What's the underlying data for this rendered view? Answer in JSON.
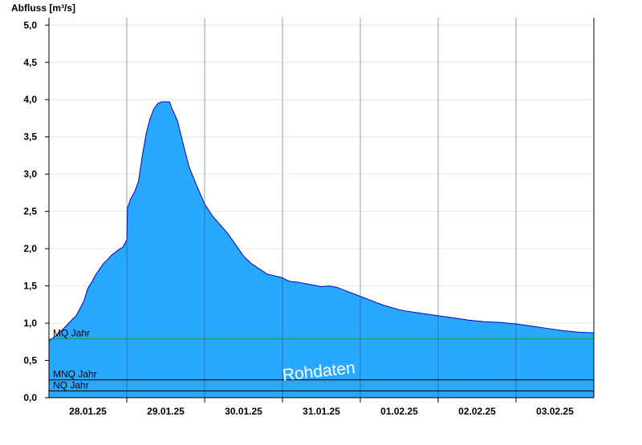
{
  "chart_data": {
    "type": "area",
    "ylabel": "Abfluss [m³/s]",
    "ylim": [
      0,
      5.1
    ],
    "yticks": [
      0,
      0.5,
      1,
      1.5,
      2,
      2.5,
      3,
      3.5,
      4,
      4.5,
      5
    ],
    "ytick_labels": [
      "0,0",
      "0,5",
      "1,0",
      "1,5",
      "2,0",
      "2,5",
      "3,0",
      "3,5",
      "4,0",
      "4,5",
      "5,0"
    ],
    "x_unit": "days since start of chart window",
    "xlim": [
      0,
      7
    ],
    "x_ticks": [
      {
        "x": 0.5,
        "label": "28.01.25"
      },
      {
        "x": 1.5,
        "label": "29.01.25"
      },
      {
        "x": 2.5,
        "label": "30.01.25"
      },
      {
        "x": 3.5,
        "label": "31.01.25"
      },
      {
        "x": 4.5,
        "label": "01.02.25"
      },
      {
        "x": 5.5,
        "label": "02.02.25"
      },
      {
        "x": 6.5,
        "label": "03.02.25"
      }
    ],
    "day_boundaries": [
      1,
      2,
      3,
      4,
      5,
      6
    ],
    "grid": "horizontal",
    "series": [
      {
        "x": [
          0,
          0.05,
          0.1,
          0.2,
          0.3,
          0.35,
          0.45,
          0.5,
          0.55,
          0.6,
          0.7,
          0.75,
          0.8,
          0.9,
          0.95,
          0.97,
          1.0,
          1.01,
          1.05,
          1.1,
          1.15,
          1.2,
          1.25,
          1.3,
          1.35,
          1.4,
          1.45,
          1.48,
          1.55,
          1.58,
          1.65,
          1.75,
          1.8,
          1.9,
          2.0,
          2.05,
          2.1,
          2.15,
          2.2,
          2.25,
          2.3,
          2.4,
          2.5,
          2.6,
          2.7,
          2.8,
          3.0,
          3.05,
          3.1,
          3.2,
          3.35,
          3.5,
          3.6,
          3.7,
          3.8,
          3.9,
          4.0,
          4.1,
          4.2,
          4.3,
          4.4,
          4.5,
          4.6,
          4.8,
          5.0,
          5.2,
          5.4,
          5.6,
          5.8,
          6.0,
          6.2,
          6.4,
          6.6,
          6.8,
          7.0
        ],
        "values": [
          0.76,
          0.8,
          0.84,
          0.94,
          1.05,
          1.1,
          1.3,
          1.47,
          1.55,
          1.65,
          1.8,
          1.85,
          1.91,
          1.99,
          2.02,
          2.06,
          2.12,
          2.55,
          2.67,
          2.76,
          2.9,
          3.25,
          3.55,
          3.75,
          3.88,
          3.95,
          3.97,
          3.97,
          3.97,
          3.88,
          3.72,
          3.3,
          3.1,
          2.84,
          2.6,
          2.52,
          2.44,
          2.38,
          2.32,
          2.26,
          2.2,
          2.05,
          1.9,
          1.8,
          1.73,
          1.66,
          1.61,
          1.58,
          1.56,
          1.55,
          1.52,
          1.49,
          1.5,
          1.48,
          1.44,
          1.4,
          1.36,
          1.32,
          1.28,
          1.24,
          1.21,
          1.18,
          1.16,
          1.13,
          1.1,
          1.07,
          1.04,
          1.02,
          1.01,
          0.99,
          0.96,
          0.93,
          0.9,
          0.88,
          0.87
        ]
      }
    ],
    "reference_lines": [
      {
        "label": "MQ Jahr",
        "value": 0.79,
        "color": "#2e8b57"
      },
      {
        "label": "MNQ Jahr",
        "value": 0.24,
        "color": "#000000"
      },
      {
        "label": "NQ Jahr",
        "value": 0.09,
        "color": "#000000"
      }
    ],
    "watermark": "Rohdaten",
    "colors": {
      "fill": "#29a8ff",
      "outline": "#0000cc",
      "grid": "#e6e6e6",
      "axis": "#000000"
    }
  }
}
